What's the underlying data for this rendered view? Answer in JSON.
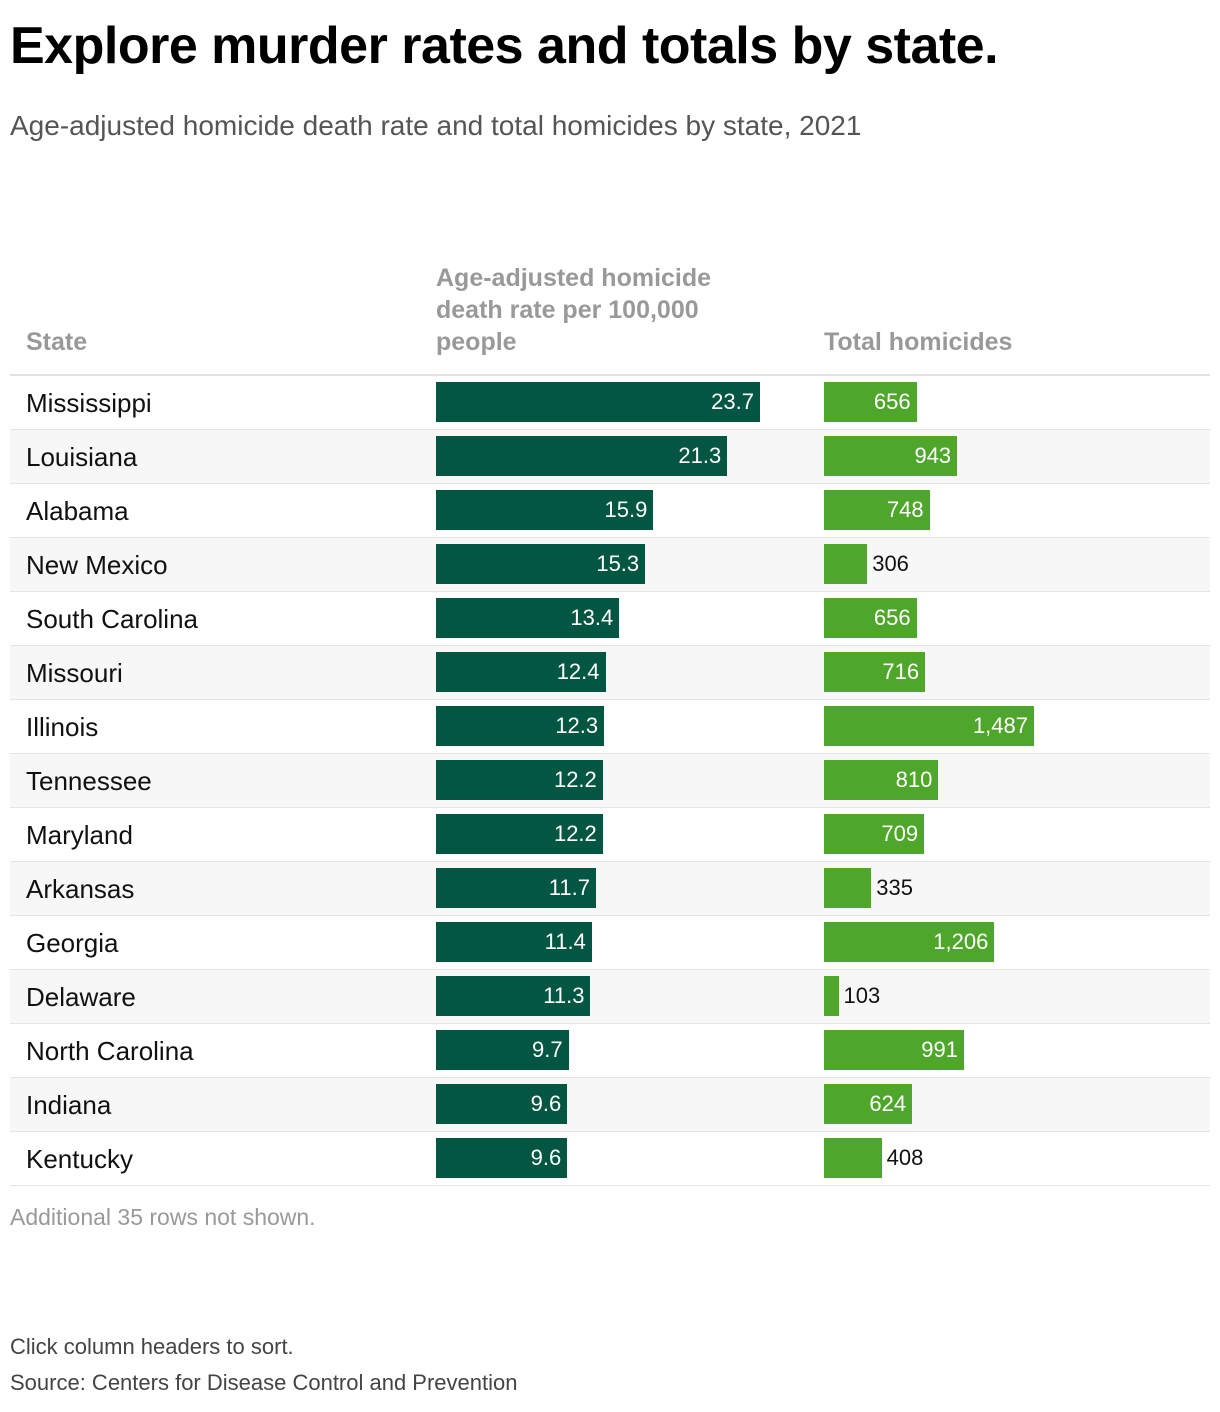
{
  "header": {
    "title": "Explore murder rates and totals by state.",
    "subtitle": "Age-adjusted homicide death rate and total homicides by state, 2021"
  },
  "table": {
    "columns": {
      "state": "State",
      "rate": "Age-adjusted homicide death rate per 100,000 people",
      "total": "Total homicides"
    }
  },
  "chart_data": {
    "type": "table",
    "title": "Explore murder rates and totals by state.",
    "subtitle": "Age-adjusted homicide death rate and total homicides by state, 2021",
    "columns": [
      "State",
      "Age-adjusted homicide death rate per 100,000 people",
      "Total homicides"
    ],
    "rate_max": 23.7,
    "total_max": 1487,
    "rows": [
      {
        "state": "Mississippi",
        "rate": 23.7,
        "rate_label": "23.7",
        "total": 656,
        "total_label": "656"
      },
      {
        "state": "Louisiana",
        "rate": 21.3,
        "rate_label": "21.3",
        "total": 943,
        "total_label": "943"
      },
      {
        "state": "Alabama",
        "rate": 15.9,
        "rate_label": "15.9",
        "total": 748,
        "total_label": "748"
      },
      {
        "state": "New Mexico",
        "rate": 15.3,
        "rate_label": "15.3",
        "total": 306,
        "total_label": "306"
      },
      {
        "state": "South Carolina",
        "rate": 13.4,
        "rate_label": "13.4",
        "total": 656,
        "total_label": "656"
      },
      {
        "state": "Missouri",
        "rate": 12.4,
        "rate_label": "12.4",
        "total": 716,
        "total_label": "716"
      },
      {
        "state": "Illinois",
        "rate": 12.3,
        "rate_label": "12.3",
        "total": 1487,
        "total_label": "1,487"
      },
      {
        "state": "Tennessee",
        "rate": 12.2,
        "rate_label": "12.2",
        "total": 810,
        "total_label": "810"
      },
      {
        "state": "Maryland",
        "rate": 12.2,
        "rate_label": "12.2",
        "total": 709,
        "total_label": "709"
      },
      {
        "state": "Arkansas",
        "rate": 11.7,
        "rate_label": "11.7",
        "total": 335,
        "total_label": "335"
      },
      {
        "state": "Georgia",
        "rate": 11.4,
        "rate_label": "11.4",
        "total": 1206,
        "total_label": "1,206"
      },
      {
        "state": "Delaware",
        "rate": 11.3,
        "rate_label": "11.3",
        "total": 103,
        "total_label": "103"
      },
      {
        "state": "North Carolina",
        "rate": 9.7,
        "rate_label": "9.7",
        "total": 991,
        "total_label": "991"
      },
      {
        "state": "Indiana",
        "rate": 9.6,
        "rate_label": "9.6",
        "total": 624,
        "total_label": "624"
      },
      {
        "state": "Kentucky",
        "rate": 9.6,
        "rate_label": "9.6",
        "total": 408,
        "total_label": "408"
      }
    ],
    "colors": {
      "rate_bar": "#035642",
      "total_bar": "#4ea72a"
    }
  },
  "notes": {
    "rows_hidden": "Additional 35 rows not shown.",
    "sort_hint": "Click column headers to sort.",
    "source": "Source: Centers for Disease Control and Prevention"
  }
}
